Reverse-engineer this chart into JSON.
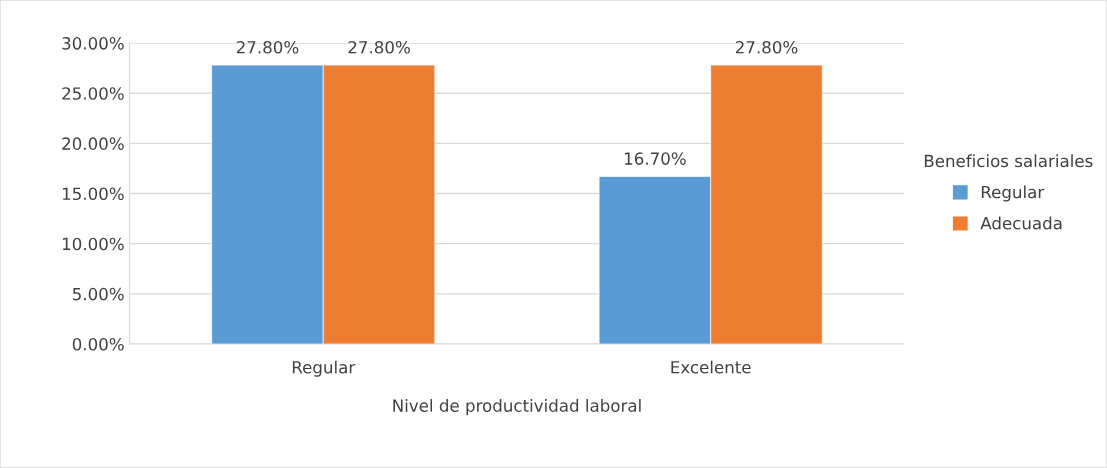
{
  "chart_data": {
    "type": "bar",
    "categories": [
      "Regular",
      "Excelente"
    ],
    "series": [
      {
        "name": "Regular",
        "color": "#5b9bd5",
        "values": [
          27.8,
          16.7
        ],
        "value_labels": [
          "27.80%",
          "16.70%"
        ]
      },
      {
        "name": "Adecuada",
        "color": "#ed7d31",
        "values": [
          27.8,
          27.8
        ],
        "value_labels": [
          "27.80%",
          "27.80%"
        ]
      }
    ],
    "xlabel": "Nivel de productividad laboral",
    "legend_title": "Beneficios salariales",
    "legend": "right",
    "ylim": [
      0,
      30
    ],
    "yticks": [
      {
        "value": 0,
        "label": "0.00%"
      },
      {
        "value": 5,
        "label": "5.00%"
      },
      {
        "value": 10,
        "label": "10.00%"
      },
      {
        "value": 15,
        "label": "15.00%"
      },
      {
        "value": 20,
        "label": "20.00%"
      },
      {
        "value": 25,
        "label": "25.00%"
      },
      {
        "value": 30,
        "label": "30.00%"
      }
    ],
    "grid": "y"
  }
}
